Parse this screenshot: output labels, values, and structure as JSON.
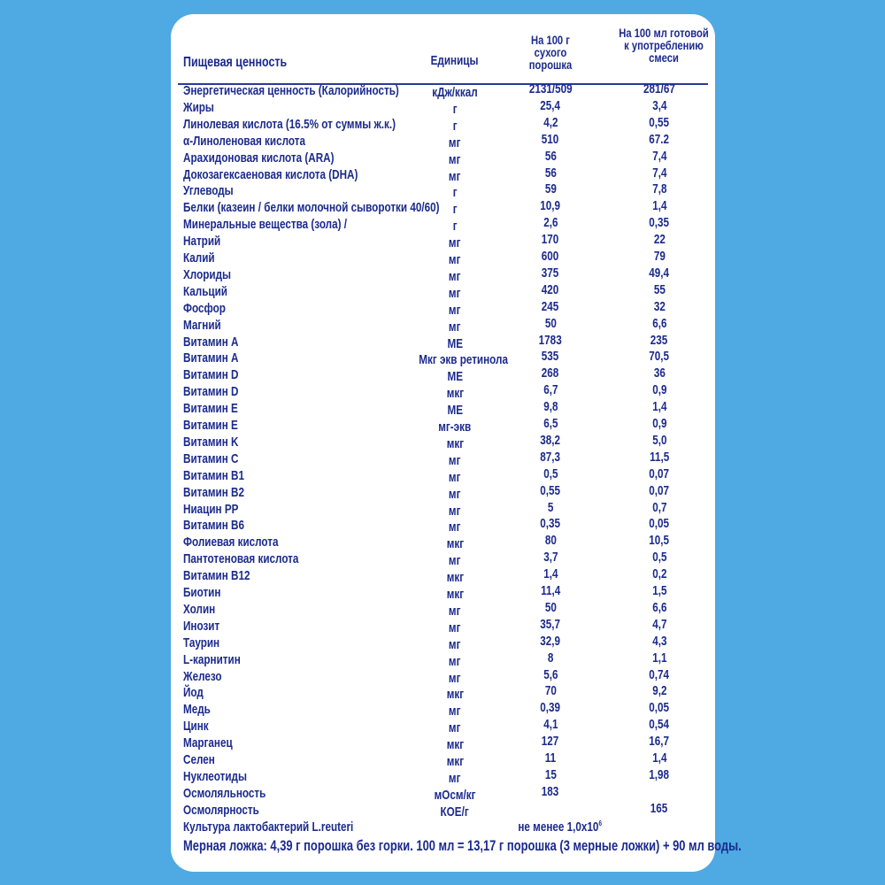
{
  "header": {
    "name": "Пищевая ценность",
    "unit": "Единицы",
    "col1": "На 100 г сухого порошка",
    "col2": "На 100 мл готовой к употреблению смеси"
  },
  "rows": [
    {
      "name": "Энергетическая ценность (Калорийность)",
      "unit": "кДж/ккал",
      "v1": "2131/509",
      "v2": "281/67"
    },
    {
      "name": "Жиры",
      "unit": "г",
      "v1": "25,4",
      "v2": "3,4"
    },
    {
      "name": "Линолевая кислота (16.5% от суммы ж.к.)",
      "unit": "г",
      "v1": "4,2",
      "v2": "0,55"
    },
    {
      "name": "α-Линоленовая кислота",
      "unit": "мг",
      "v1": "510",
      "v2": "67.2"
    },
    {
      "name": "Арахидоновая кислота (ARA)",
      "unit": "мг",
      "v1": "56",
      "v2": "7,4"
    },
    {
      "name": "Докозагексаеновая кислота (DHA)",
      "unit": "мг",
      "v1": "56",
      "v2": "7,4"
    },
    {
      "name": "Углеводы",
      "unit": "г",
      "v1": "59",
      "v2": "7,8"
    },
    {
      "name": "Белки (казеин / белки молочной сыворотки 40/60)",
      "unit": "г",
      "v1": "10,9",
      "v2": "1,4"
    },
    {
      "name": "Минеральные вещества (зола) /",
      "unit": "г",
      "v1": "2,6",
      "v2": "0,35"
    },
    {
      "name": "Натрий",
      "unit": "мг",
      "v1": "170",
      "v2": "22"
    },
    {
      "name": "Калий",
      "unit": "мг",
      "v1": "600",
      "v2": "79"
    },
    {
      "name": "Хлориды",
      "unit": "мг",
      "v1": "375",
      "v2": "49,4"
    },
    {
      "name": "Кальций",
      "unit": "мг",
      "v1": "420",
      "v2": "55"
    },
    {
      "name": "Фосфор",
      "unit": "мг",
      "v1": "245",
      "v2": "32"
    },
    {
      "name": "Магний",
      "unit": "мг",
      "v1": "50",
      "v2": "6,6"
    },
    {
      "name": "Витамин A",
      "unit": "МЕ",
      "v1": "1783",
      "v2": "235"
    },
    {
      "name": "Витамин A",
      "unit": "Мкг экв ретинола",
      "v1": "535",
      "v2": "70,5"
    },
    {
      "name": "Витамин D",
      "unit": "МЕ",
      "v1": "268",
      "v2": "36"
    },
    {
      "name": "Витамин D",
      "unit": "мкг",
      "v1": "6,7",
      "v2": "0,9"
    },
    {
      "name": "Витамин E",
      "unit": "МЕ",
      "v1": "9,8",
      "v2": "1,4"
    },
    {
      "name": "Витамин E",
      "unit": "мг-экв",
      "v1": "6,5",
      "v2": "0,9"
    },
    {
      "name": "Витамин K",
      "unit": "мкг",
      "v1": "38,2",
      "v2": "5,0"
    },
    {
      "name": "Витамин C",
      "unit": "мг",
      "v1": "87,3",
      "v2": "11,5"
    },
    {
      "name": "Витамин B1",
      "unit": "мг",
      "v1": "0,5",
      "v2": "0,07"
    },
    {
      "name": "Витамин B2",
      "unit": "мг",
      "v1": "0,55",
      "v2": "0,07"
    },
    {
      "name": "Ниацин PP",
      "unit": "мг",
      "v1": "5",
      "v2": "0,7"
    },
    {
      "name": "Витамин B6",
      "unit": "мг",
      "v1": "0,35",
      "v2": "0,05"
    },
    {
      "name": "Фолиевая кислота",
      "unit": "мкг",
      "v1": "80",
      "v2": "10,5"
    },
    {
      "name": "Пантотеновая кислота",
      "unit": "мг",
      "v1": "3,7",
      "v2": "0,5"
    },
    {
      "name": "Витамин B12",
      "unit": "мкг",
      "v1": "1,4",
      "v2": "0,2"
    },
    {
      "name": "Биотин",
      "unit": "мкг",
      "v1": "11,4",
      "v2": "1,5"
    },
    {
      "name": "Холин",
      "unit": "мг",
      "v1": "50",
      "v2": "6,6"
    },
    {
      "name": "Инозит",
      "unit": "мг",
      "v1": "35,7",
      "v2": "4,7"
    },
    {
      "name": "Таурин",
      "unit": "мг",
      "v1": "32,9",
      "v2": "4,3"
    },
    {
      "name": "L-карнитин",
      "unit": "мг",
      "v1": "8",
      "v2": "1,1"
    },
    {
      "name": "Железо",
      "unit": "мг",
      "v1": "5,6",
      "v2": "0,74"
    },
    {
      "name": "Йод",
      "unit": "мкг",
      "v1": "70",
      "v2": "9,2"
    },
    {
      "name": "Медь",
      "unit": "мг",
      "v1": "0,39",
      "v2": "0,05"
    },
    {
      "name": "Цинк",
      "unit": "мг",
      "v1": "4,1",
      "v2": "0,54"
    },
    {
      "name": "Марганец",
      "unit": "мкг",
      "v1": "127",
      "v2": "16,7"
    },
    {
      "name": "Селен",
      "unit": "мкг",
      "v1": "11",
      "v2": "1,4"
    },
    {
      "name": "Нуклеотиды",
      "unit": "мг",
      "v1": "15",
      "v2": "1,98"
    },
    {
      "name": "Осмоляльность",
      "unit": "мОсм/кг",
      "v1": "183",
      "v2": ""
    },
    {
      "name": "Осмолярность",
      "unit": "КОЕ/г",
      "v1": "",
      "v2": "165"
    }
  ],
  "culture": {
    "name": "Культура лактобактерий L.reuteri",
    "value": "не менее 1,0x10",
    "exp": "6"
  },
  "footer": "Мерная ложка: 4,39 г порошка без горки. 100 мл = 13,17 г порошка (3 мерные ложки) + 90 мл воды."
}
